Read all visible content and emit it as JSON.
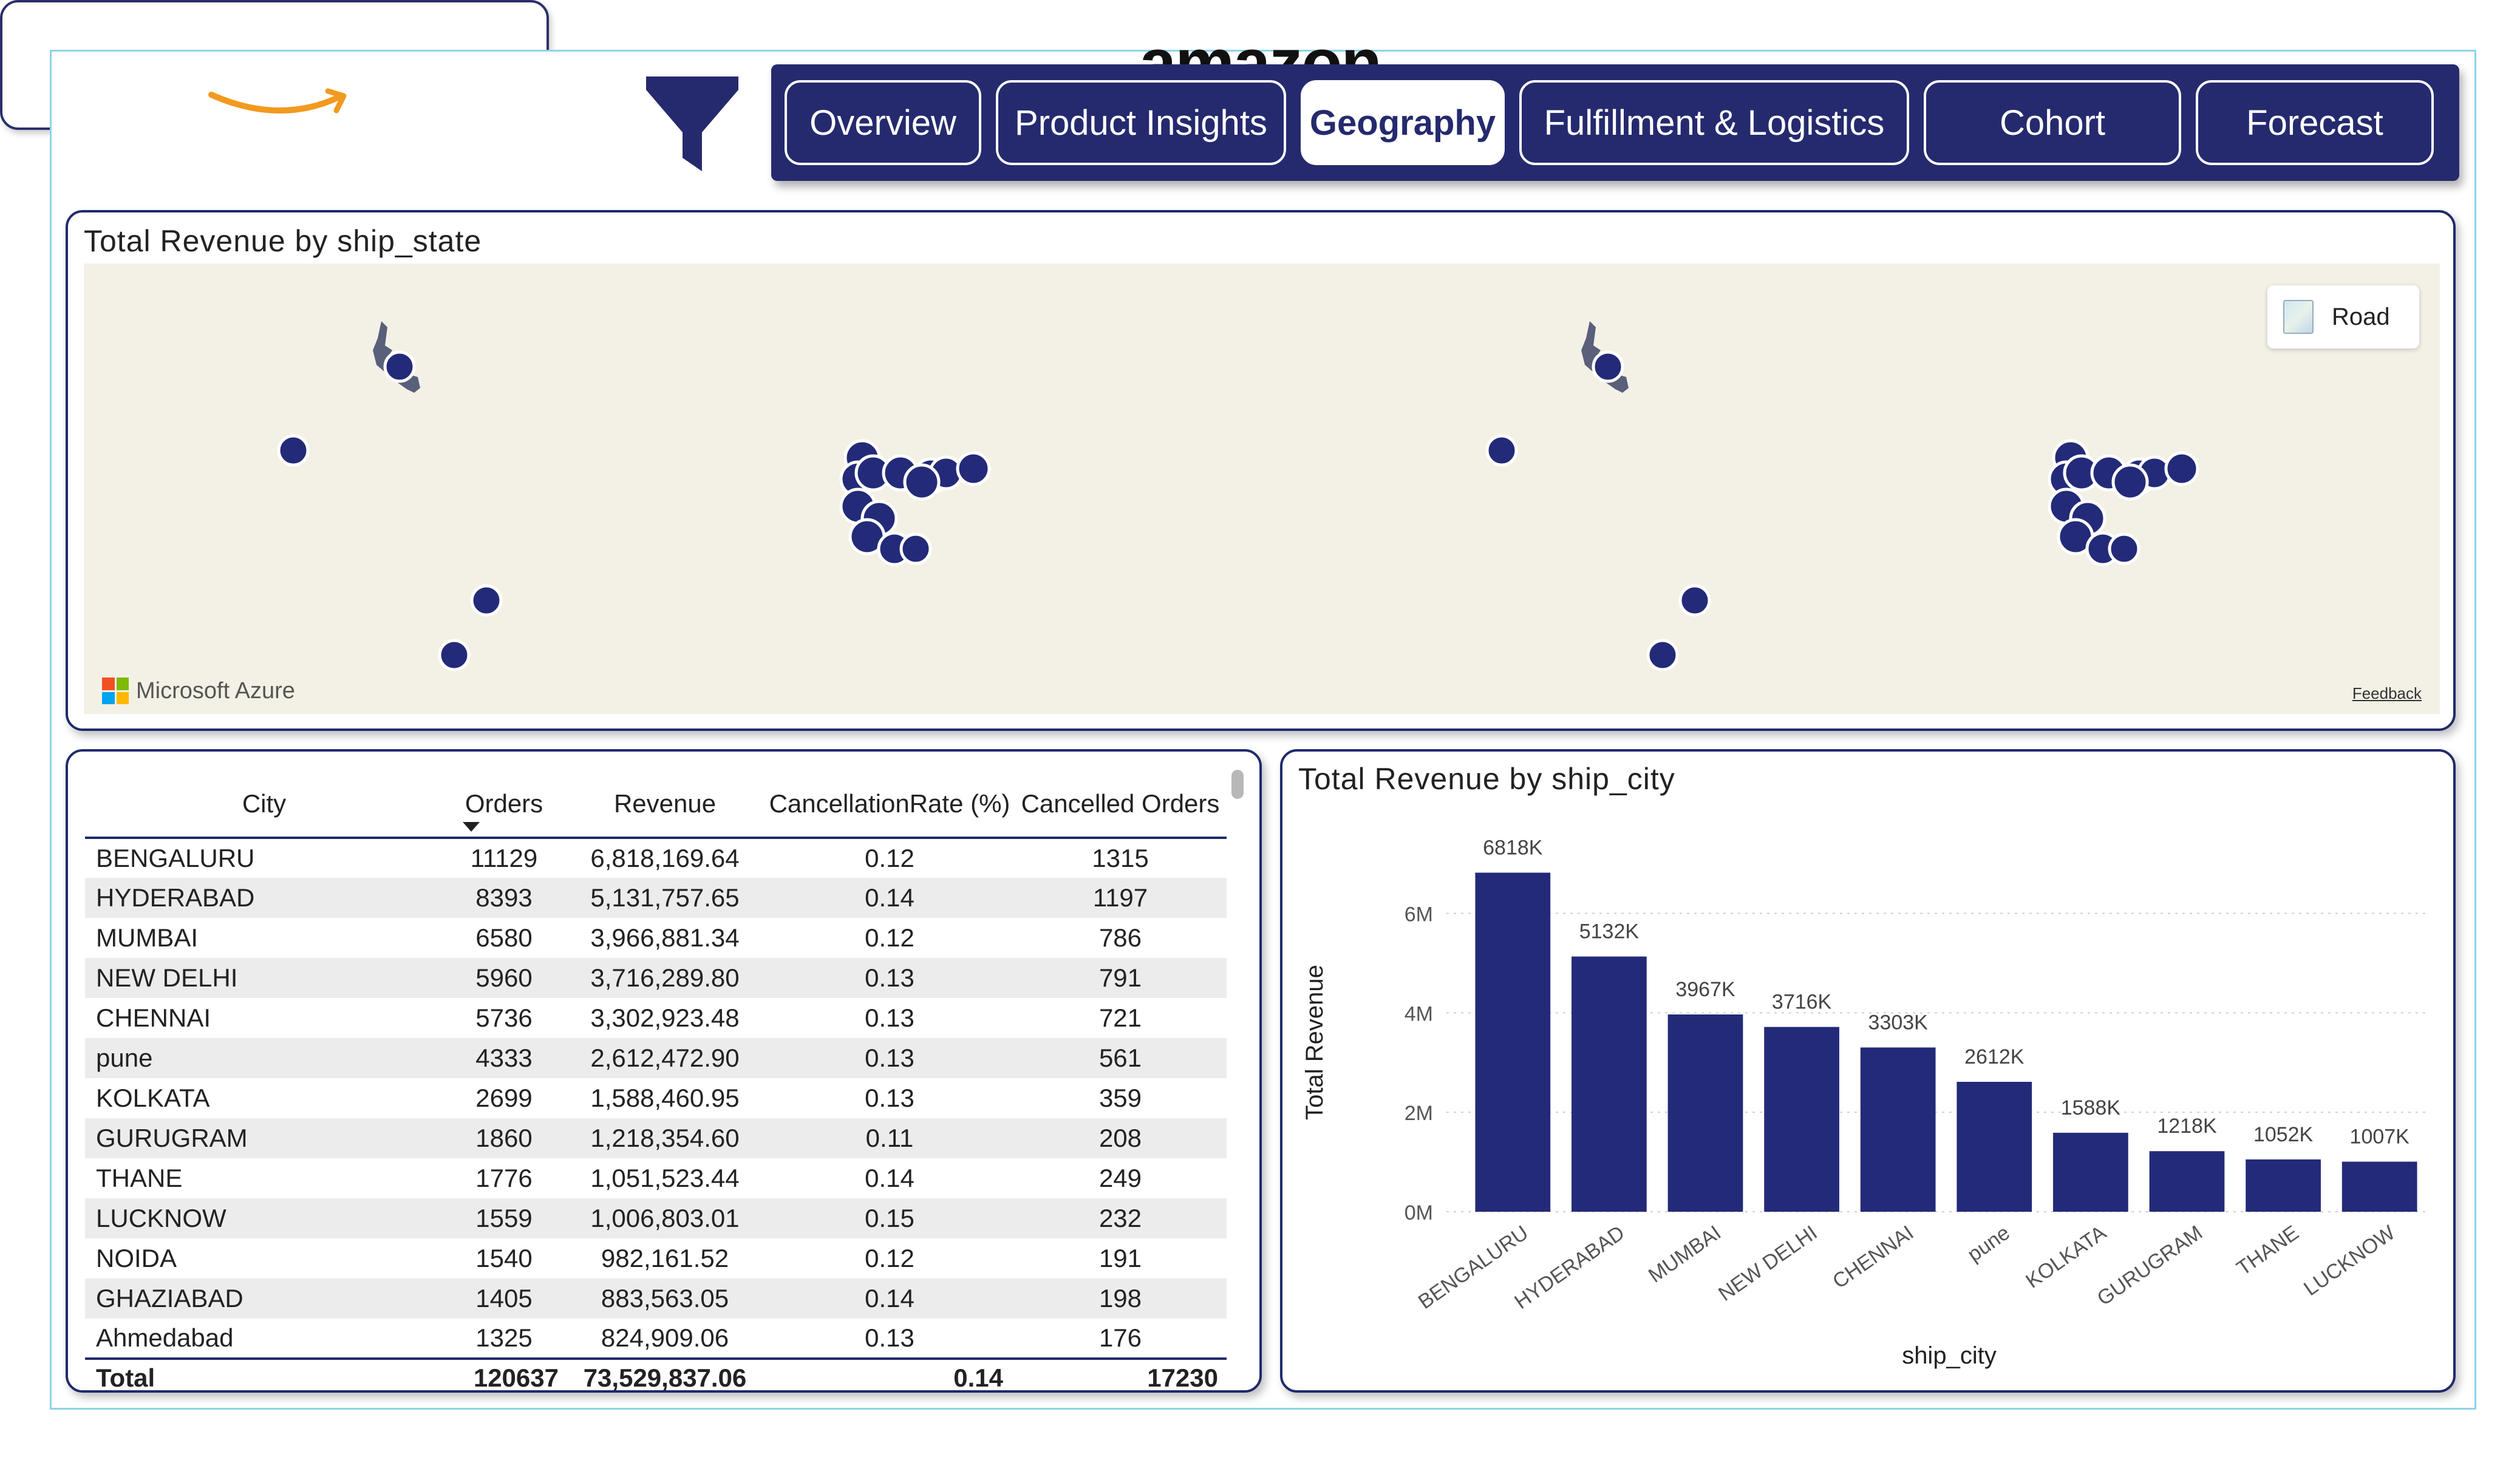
{
  "logo": {
    "text": "amazon"
  },
  "filter_icon": "filter-icon",
  "nav": {
    "tabs": [
      {
        "label": "Overview",
        "active": false
      },
      {
        "label": "Product Insights",
        "active": false
      },
      {
        "label": "Geography",
        "active": true
      },
      {
        "label": "Fulfillment & Logistics",
        "active": false
      },
      {
        "label": "Cohort",
        "active": false
      },
      {
        "label": "Forecast",
        "active": false
      }
    ]
  },
  "map": {
    "title": "Total Revenue by ship_state",
    "road_label": "Road",
    "azure_label": "Microsoft Azure",
    "feedback_label": "Feedback",
    "marker_color": "#232a78"
  },
  "table": {
    "headers": [
      "City",
      "Orders",
      "Revenue",
      "CancellationRate (%)",
      "Cancelled Orders"
    ],
    "rows": [
      [
        "BENGALURU",
        "11129",
        "6,818,169.64",
        "0.12",
        "1315"
      ],
      [
        "HYDERABAD",
        "8393",
        "5,131,757.65",
        "0.14",
        "1197"
      ],
      [
        "MUMBAI",
        "6580",
        "3,966,881.34",
        "0.12",
        "786"
      ],
      [
        "NEW DELHI",
        "5960",
        "3,716,289.80",
        "0.13",
        "791"
      ],
      [
        "CHENNAI",
        "5736",
        "3,302,923.48",
        "0.13",
        "721"
      ],
      [
        "pune",
        "4333",
        "2,612,472.90",
        "0.13",
        "561"
      ],
      [
        "KOLKATA",
        "2699",
        "1,588,460.95",
        "0.13",
        "359"
      ],
      [
        "GURUGRAM",
        "1860",
        "1,218,354.60",
        "0.11",
        "208"
      ],
      [
        "THANE",
        "1776",
        "1,051,523.44",
        "0.14",
        "249"
      ],
      [
        "LUCKNOW",
        "1559",
        "1,006,803.01",
        "0.15",
        "232"
      ],
      [
        "NOIDA",
        "1540",
        "982,161.52",
        "0.12",
        "191"
      ],
      [
        "GHAZIABAD",
        "1405",
        "883,563.05",
        "0.14",
        "198"
      ],
      [
        "Ahmedabad",
        "1325",
        "824,909.06",
        "0.13",
        "176"
      ]
    ],
    "total": [
      "Total",
      "120637",
      "73,529,837.06",
      "0.14",
      "17230"
    ]
  },
  "chart_data": {
    "type": "bar",
    "title": "Total Revenue by ship_city",
    "xlabel": "ship_city",
    "ylabel": "Total Revenue",
    "categories": [
      "BENGALURU",
      "HYDERABAD",
      "MUMBAI",
      "NEW DELHI",
      "CHENNAI",
      "pune",
      "KOLKATA",
      "GURUGRAM",
      "THANE",
      "LUCKNOW"
    ],
    "values": [
      6818,
      5132,
      3967,
      3716,
      3303,
      2612,
      1588,
      1218,
      1052,
      1007
    ],
    "data_labels": [
      "6818K",
      "5132K",
      "3967K",
      "3716K",
      "3303K",
      "2612K",
      "1588K",
      "1218K",
      "1052K",
      "1007K"
    ],
    "yticks": [
      0,
      2000,
      4000,
      6000
    ],
    "ytick_labels": [
      "0M",
      "2M",
      "4M",
      "6M"
    ],
    "ylim": [
      0,
      7300
    ],
    "grid": true,
    "bar_color": "#232a78"
  }
}
